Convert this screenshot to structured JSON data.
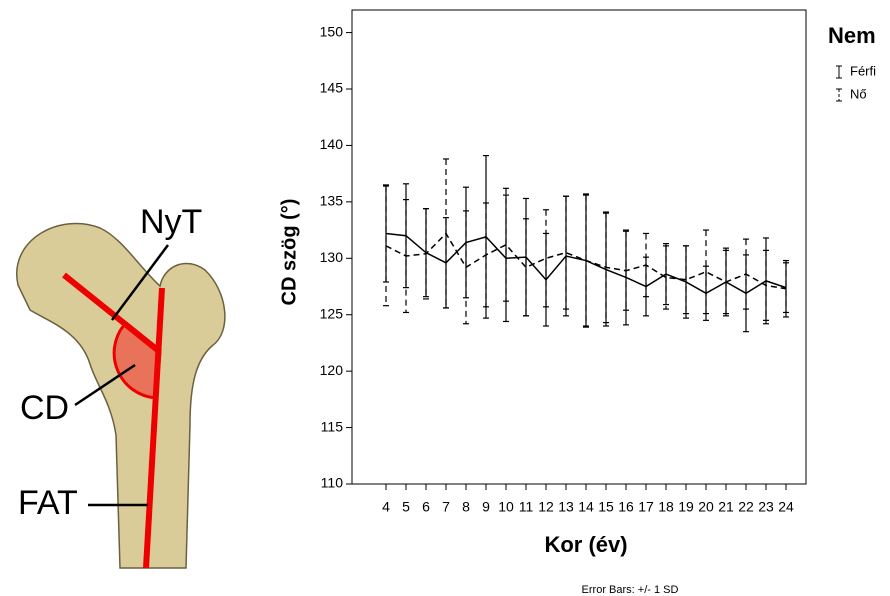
{
  "illustration": {
    "labels": [
      "NyT",
      "CD",
      "FAT"
    ]
  },
  "chart_data": {
    "type": "line",
    "x_label": "Kor (év)",
    "y_label": "CD szög (°)",
    "legend_title": "Nem",
    "note": "Error Bars: +/- 1 SD",
    "categories": [
      "4",
      "5",
      "6",
      "7",
      "8",
      "9",
      "10",
      "11",
      "12",
      "13",
      "14",
      "15",
      "16",
      "17",
      "18",
      "19",
      "20",
      "21",
      "22",
      "23",
      "24"
    ],
    "series": [
      {
        "name": "Férfi",
        "color": "#000000",
        "dash": "none",
        "values": [
          132.2,
          132.0,
          130.5,
          129.6,
          131.4,
          131.9,
          130.0,
          130.1,
          128.1,
          130.2,
          129.8,
          129.0,
          128.3,
          127.5,
          128.6,
          127.9,
          126.9,
          127.9,
          126.9,
          128.0,
          127.4
        ],
        "errors": [
          4.3,
          4.6,
          3.9,
          4.0,
          4.9,
          7.2,
          5.6,
          5.2,
          4.1,
          5.3,
          5.9,
          5.0,
          4.2,
          2.6,
          2.7,
          3.2,
          2.4,
          3.0,
          3.4,
          3.8,
          2.2
        ]
      },
      {
        "name": "Nő",
        "color": "#000000",
        "dash": "6,4",
        "values": [
          131.1,
          130.2,
          130.4,
          132.2,
          129.2,
          130.3,
          131.2,
          129.2,
          130.0,
          130.5,
          129.8,
          129.2,
          128.9,
          129.4,
          128.3,
          128.1,
          128.8,
          127.9,
          128.6,
          127.6,
          127.3
        ],
        "errors": [
          5.3,
          5.0,
          4.0,
          6.6,
          5.0,
          4.6,
          5.0,
          4.3,
          4.3,
          5.0,
          5.8,
          4.9,
          3.5,
          2.8,
          2.8,
          3.0,
          3.7,
          2.8,
          3.1,
          3.1,
          2.5
        ]
      }
    ],
    "ylim": [
      110,
      152
    ],
    "yticks": [
      110,
      115,
      120,
      125,
      130,
      135,
      140,
      145,
      150
    ]
  }
}
